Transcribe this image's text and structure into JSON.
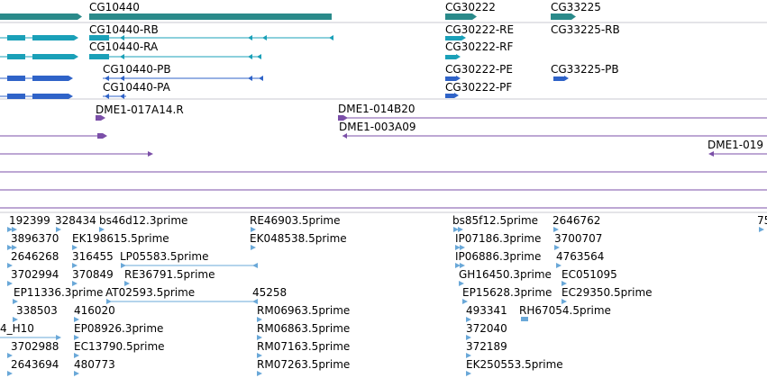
{
  "colors": {
    "gene": "#2a8a8a",
    "transcript_r": "#1aa0b8",
    "transcript_p": "#2f63c8",
    "clone": "#7b4fa8",
    "est": "#6aa8d8",
    "divider": "#c8c8d0",
    "line": "#7b4fa8"
  },
  "genes": {
    "cg10440": "CG10440",
    "cg30222": "CG30222",
    "cg33225": "CG33225"
  },
  "transcripts": {
    "rb": "CG10440-RB",
    "ra": "CG10440-RA",
    "re": "CG30222-RE",
    "rf": "CG30222-RF",
    "cg33225_rb": "CG33225-RB",
    "pb": "CG10440-PB",
    "pa": "CG10440-PA",
    "pe": "CG30222-PE",
    "pf": "CG30222-PF",
    "cg33225_pb": "CG33225-PB"
  },
  "clones": {
    "a": "DME1-017A14.R",
    "b": "DME1-014B20",
    "c": "DME1-003A09",
    "d": "DME1-019"
  },
  "ests": {
    "r1": [
      "192399",
      "328434",
      "bs46d12.3prime",
      "RE46903.5prime",
      "bs85f12.5prime",
      "2646762",
      "75"
    ],
    "r2": [
      "3896370",
      "EK198615.5prime",
      "EK048538.5prime",
      "IP07186.3prime",
      "3700707"
    ],
    "r3": [
      "2646268",
      "316455",
      "LP05583.5prime",
      "IP06886.3prime",
      "4763564"
    ],
    "r4": [
      "3702994",
      "370849",
      "RE36791.5prime",
      "GH16450.3prime",
      "EC051095"
    ],
    "r5": [
      "EP11336.3prime",
      "AT02593.5prime",
      "45258",
      "EP15628.3prime",
      "EC29350.5prime"
    ],
    "r6": [
      "338503",
      "416020",
      "RM06963.5prime",
      "493341",
      "RH67054.5prime"
    ],
    "r7": [
      "4_H10",
      "EP08926.3prime",
      "RM06863.5prime",
      "372040"
    ],
    "r8": [
      "3702988",
      "EC13790.5prime",
      "RM07163.5prime",
      "372189"
    ],
    "r9": [
      "2643694",
      "480773",
      "RM07263.5prime",
      "EK250553.5prime"
    ]
  }
}
